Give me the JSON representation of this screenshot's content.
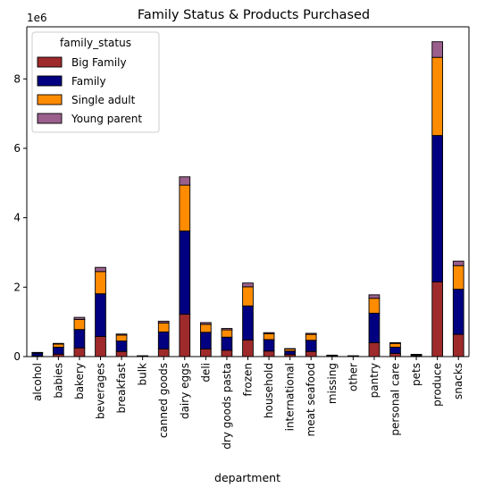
{
  "chart_data": {
    "type": "bar",
    "stacked": true,
    "title": "Family Status & Products Purchased",
    "xlabel": "department",
    "ylabel": "",
    "y_offset_label": "1e6",
    "ylim": [
      0,
      9.5
    ],
    "yticks": [
      0,
      2,
      4,
      6,
      8
    ],
    "grid": false,
    "legend_title": "family_status",
    "legend_position": "top-left",
    "categories": [
      "alcohol",
      "babies",
      "bakery",
      "beverages",
      "breakfast",
      "bulk",
      "canned goods",
      "dairy eggs",
      "deli",
      "dry goods pasta",
      "frozen",
      "household",
      "international",
      "meat seafood",
      "missing",
      "other",
      "pantry",
      "personal care",
      "pets",
      "produce",
      "snacks"
    ],
    "series": [
      {
        "name": "Big Family",
        "color": "#9e2a2b",
        "values": [
          0.02,
          0.07,
          0.25,
          0.58,
          0.15,
          0.005,
          0.22,
          1.22,
          0.22,
          0.18,
          0.48,
          0.16,
          0.06,
          0.15,
          0.01,
          0.005,
          0.4,
          0.09,
          0.015,
          2.15,
          0.64
        ]
      },
      {
        "name": "Family",
        "color": "#000080",
        "values": [
          0.08,
          0.2,
          0.53,
          1.23,
          0.3,
          0.01,
          0.49,
          2.4,
          0.48,
          0.38,
          0.98,
          0.33,
          0.1,
          0.32,
          0.02,
          0.01,
          0.85,
          0.18,
          0.03,
          4.22,
          1.3
        ]
      },
      {
        "name": "Single adult",
        "color": "#ff8c00",
        "values": [
          0.015,
          0.09,
          0.29,
          0.64,
          0.17,
          0.005,
          0.26,
          1.32,
          0.23,
          0.21,
          0.55,
          0.17,
          0.06,
          0.17,
          0.01,
          0.005,
          0.43,
          0.11,
          0.015,
          2.25,
          0.68
        ]
      },
      {
        "name": "Young parent",
        "color": "#9b5f8c",
        "values": [
          0.005,
          0.02,
          0.06,
          0.12,
          0.03,
          0.002,
          0.05,
          0.24,
          0.05,
          0.04,
          0.11,
          0.03,
          0.01,
          0.03,
          0.002,
          0.002,
          0.1,
          0.02,
          0.005,
          0.45,
          0.13
        ]
      }
    ]
  }
}
